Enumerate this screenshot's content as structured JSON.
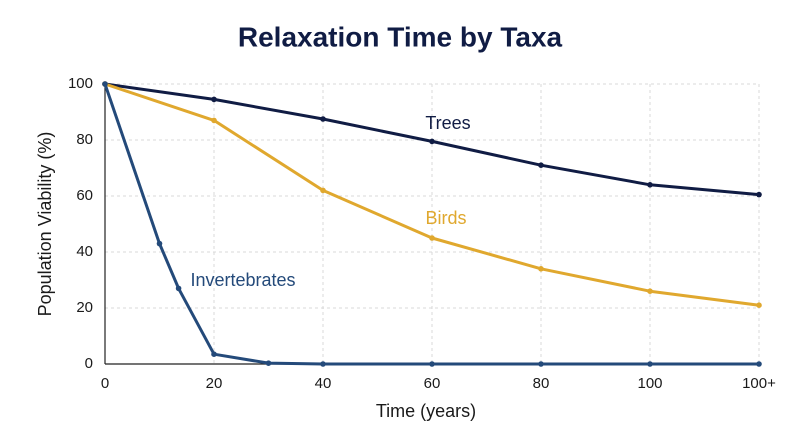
{
  "chart_data": {
    "type": "line",
    "title": "Relaxation Time by Taxa",
    "x_label": "Time (years)",
    "y_label": "Population Viability (%)",
    "xlim": [
      0,
      120
    ],
    "xticks": [
      0,
      20,
      40,
      60,
      80,
      100,
      {
        "value": 120,
        "label": "100+"
      }
    ],
    "ylim": [
      0,
      100
    ],
    "yticks": [
      0,
      20,
      40,
      60,
      80,
      100
    ],
    "grid": true,
    "series": [
      {
        "name": "Trees",
        "color": "#101c44",
        "x": [
          0,
          20,
          40,
          60,
          80,
          100,
          120
        ],
        "values": [
          100,
          94.5,
          87.5,
          79.5,
          71,
          64,
          60.5
        ]
      },
      {
        "name": "Birds",
        "color": "#e0a82e",
        "x": [
          0,
          20,
          40,
          60,
          80,
          100,
          120
        ],
        "values": [
          100,
          87,
          62,
          45,
          34,
          26,
          21
        ]
      },
      {
        "name": "Invertebrates",
        "color": "#244a7a",
        "x": [
          0,
          10,
          13.5,
          20,
          30,
          40,
          60,
          80,
          100,
          120
        ],
        "values": [
          100,
          43,
          27,
          3.5,
          0.3,
          0,
          0,
          0,
          0,
          0
        ]
      }
    ]
  }
}
